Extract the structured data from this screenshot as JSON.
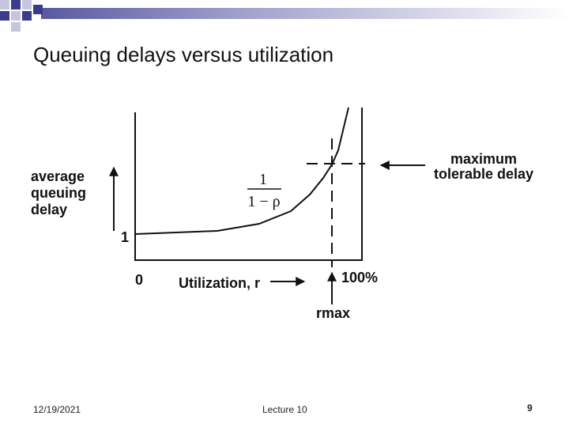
{
  "slide": {
    "title": "Queuing delays versus utilization",
    "footer_date": "12/19/2021",
    "footer_center": "Lecture 10",
    "page_number": "9",
    "accent_colors": [
      "#3b3b8f",
      "#8a8abf",
      "#c5c5e0"
    ]
  },
  "diagram": {
    "y_label_lines": [
      "average",
      "queuing",
      "delay"
    ],
    "y_one": "1",
    "x_zero": "0",
    "x_label": "Utilization, r",
    "x_max": "100%",
    "rmax_label": "rmax",
    "formula_num": "1",
    "formula_den": "1 − ρ",
    "max_delay_lines": [
      "maximum",
      "tolerable delay"
    ]
  }
}
